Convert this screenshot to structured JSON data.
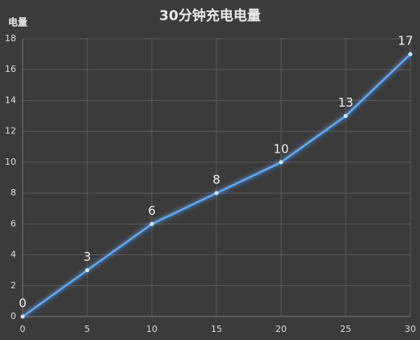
{
  "chart_data": {
    "type": "line",
    "title": "30分钟充电电量",
    "y_label": "电量",
    "x": [
      0,
      5,
      10,
      15,
      20,
      25,
      30
    ],
    "values": [
      0,
      3,
      6,
      8,
      10,
      13,
      17
    ],
    "color": "#5fa8f5",
    "xlim": [
      0,
      30
    ],
    "xticks": [
      0,
      5,
      10,
      15,
      20,
      25,
      30
    ],
    "ylim": [
      0,
      18
    ],
    "yticks": [
      0,
      2,
      4,
      6,
      8,
      10,
      12,
      14,
      16,
      18
    ],
    "grid": true
  }
}
